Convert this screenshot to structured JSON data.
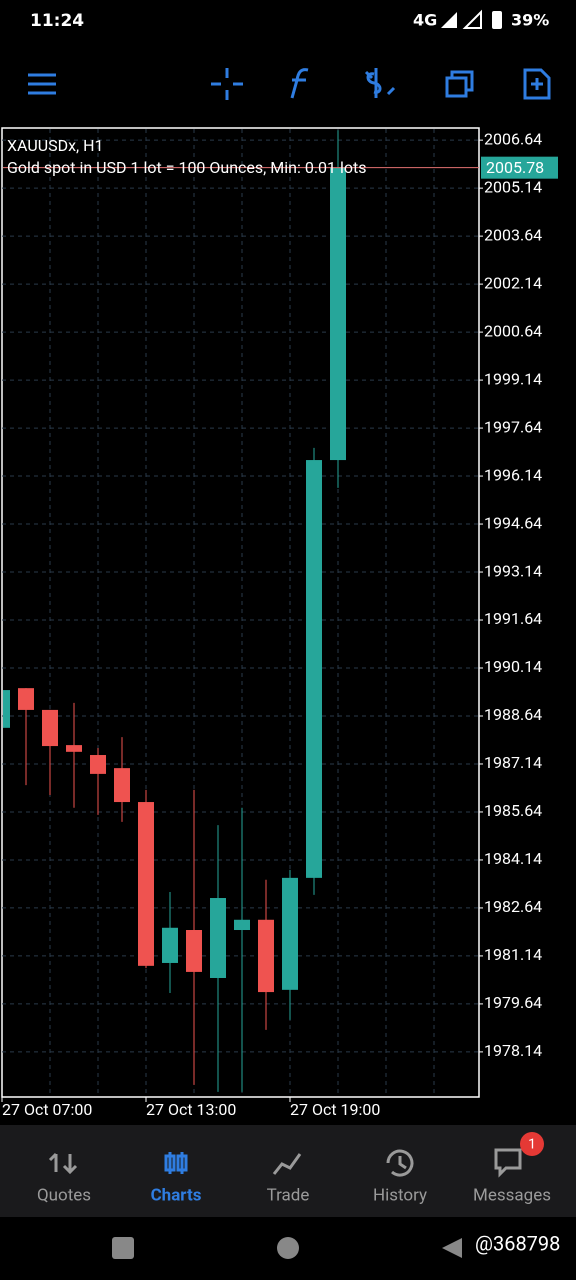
{
  "status_bar": {
    "time": "11:24",
    "network": "4G",
    "battery": "39%"
  },
  "chart_data": {
    "type": "candlestick",
    "title": "XAUUSDx, H1",
    "subtitle": "Gold spot in USD 1 lot = 100 Ounces, Min: 0.01 lots",
    "categories": [
      "27 Oct 07:00",
      null,
      null,
      null,
      null,
      null,
      "27 Oct 13:00",
      null,
      null,
      null,
      null,
      null,
      "27 Oct 19:00",
      null,
      null
    ],
    "open": [
      1988.27,
      1989.51,
      1988.83,
      1987.73,
      1987.42,
      1987.01,
      1985.95,
      1980.92,
      1981.95,
      1980.45,
      1981.95,
      1982.27,
      1980.08,
      1983.58,
      1996.64
    ],
    "high": [
      1989.5,
      1989.51,
      1988.83,
      1989.05,
      1987.64,
      1987.98,
      1986.33,
      1983.14,
      1986.33,
      1985.23,
      1985.77,
      1983.52,
      1983.83,
      1997.02,
      2006.95
    ],
    "low": [
      1988.2,
      1986.48,
      1986.17,
      1985.77,
      1985.55,
      1985.33,
      1980.76,
      1979.98,
      1977.11,
      1976.89,
      1976.89,
      1978.83,
      1979.14,
      1983.05,
      1995.77
    ],
    "close": [
      1989.45,
      1988.83,
      1987.7,
      1987.52,
      1986.83,
      1985.95,
      1980.83,
      1982.02,
      1980.64,
      1982.95,
      1982.27,
      1980.01,
      1983.58,
      1996.64,
      2005.78
    ],
    "up_color": "#26a69a",
    "down_color": "#ef5350",
    "ylim": [
      1976.73,
      2007.02
    ],
    "yticks": [
      2006.64,
      2005.14,
      2003.64,
      2002.14,
      2000.64,
      1999.14,
      1997.64,
      1996.14,
      1994.64,
      1993.14,
      1991.64,
      1990.14,
      1988.64,
      1987.14,
      1985.64,
      1984.14,
      1982.64,
      1981.14,
      1979.64,
      1978.14
    ],
    "grid": true,
    "current_price": 2005.78
  },
  "bottom_nav": {
    "tabs": [
      "Quotes",
      "Charts",
      "Trade",
      "History",
      "Messages"
    ],
    "active": "Charts",
    "badge": "1"
  },
  "watermark": "@368798"
}
